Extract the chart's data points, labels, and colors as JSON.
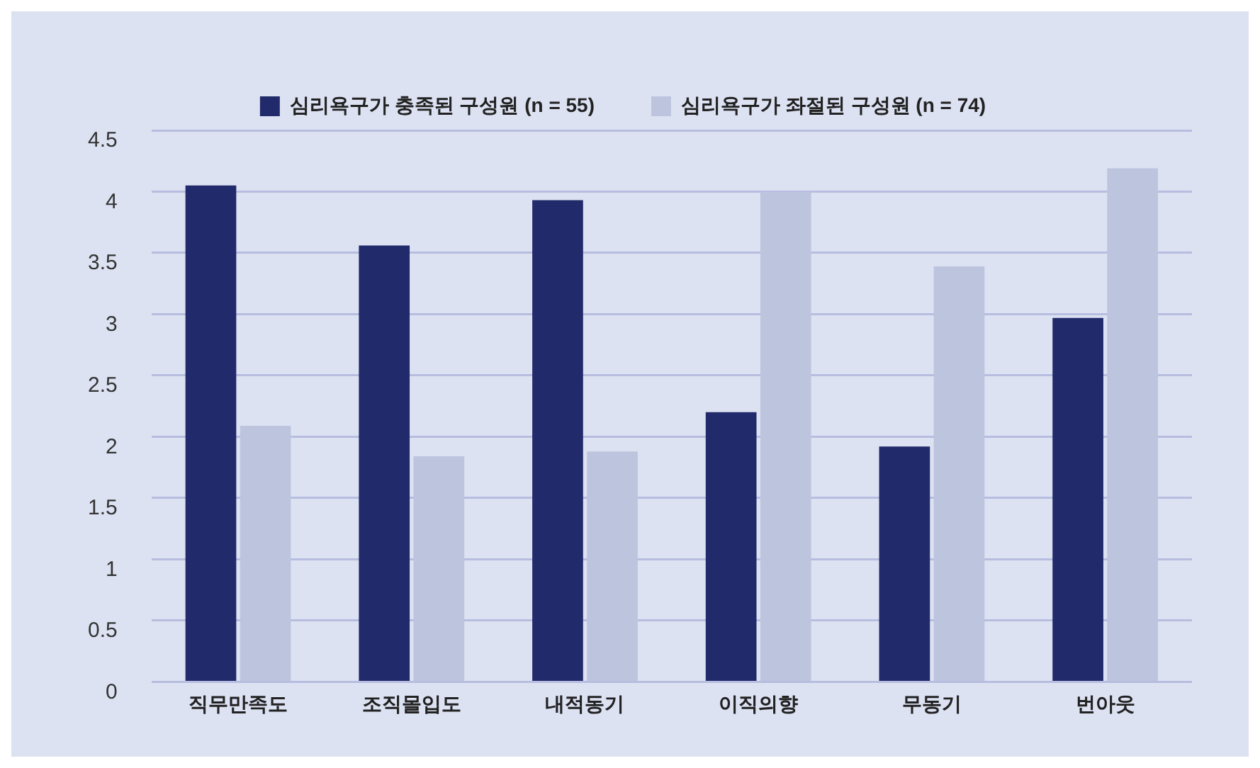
{
  "chart_data": {
    "type": "bar",
    "categories": [
      "직무만족도",
      "조직몰입도",
      "내적동기",
      "이직의향",
      "무동기",
      "번아웃"
    ],
    "series": [
      {
        "name": "심리욕구가 충족된 구성원 (n = 55)",
        "color": "#212a6a",
        "values": [
          4.05,
          3.56,
          3.93,
          2.2,
          1.92,
          2.97
        ]
      },
      {
        "name": "심리욕구가 좌절된 구성원 (n = 74)",
        "color": "#bdc4de",
        "values": [
          2.09,
          1.84,
          1.88,
          4.0,
          3.39,
          4.19
        ]
      }
    ],
    "ylim": [
      0,
      4.5
    ],
    "yticks": [
      0,
      0.5,
      1,
      1.5,
      2,
      2.5,
      3,
      3.5,
      4,
      4.5
    ],
    "grid": "y",
    "legend": "top"
  }
}
